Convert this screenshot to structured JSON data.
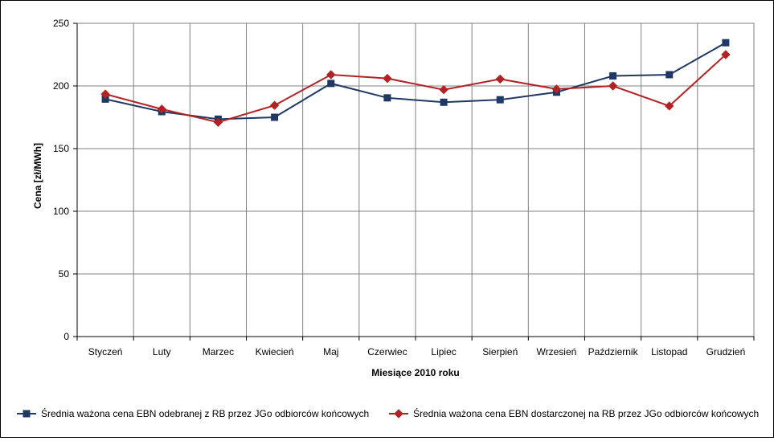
{
  "chart_data": {
    "type": "line",
    "title": "",
    "xlabel": "Miesiące 2010  roku",
    "ylabel": "Cena [zł/MWh]",
    "ylim": [
      0,
      250
    ],
    "yticks": [
      0,
      50,
      100,
      150,
      200,
      250
    ],
    "grid": true,
    "legend_position": "bottom",
    "categories": [
      "Styczeń",
      "Luty",
      "Marzec",
      "Kwiecień",
      "Maj",
      "Czerwiec",
      "Lipiec",
      "Sierpień",
      "Wrzesień",
      "Październik",
      "Listopad",
      "Grudzień"
    ],
    "series": [
      {
        "name": "Średnia ważona cena EBN odebranej z RB  przez JGo  odbiorców końcowych",
        "color": "#1f3864",
        "marker": "square",
        "values": [
          189.5,
          179.5,
          173.5,
          175,
          202,
          190.5,
          187,
          189,
          195,
          208,
          209,
          234.5
        ]
      },
      {
        "name": "Średnia ważona cena EBN dostarczonej na RB  przez JGo odbiorców końcowych",
        "color": "#b22222",
        "marker": "diamond",
        "values": [
          193.5,
          181.5,
          171,
          184.5,
          209,
          206,
          197,
          205.5,
          197.5,
          200,
          184,
          225
        ]
      }
    ]
  }
}
